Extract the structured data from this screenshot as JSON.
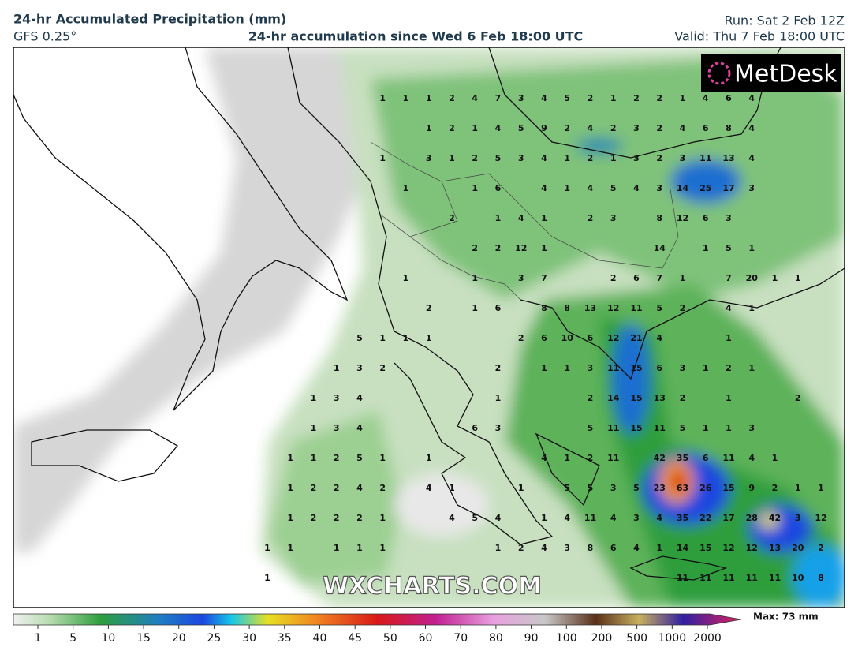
{
  "header": {
    "title": "24-hr Accumulated Precipitation (mm)",
    "model": "GFS 0.25°",
    "subtitle": "24-hr accumulation since Wed 6 Feb 18:00 UTC",
    "run": "Run: Sat 2 Feb 12Z",
    "valid": "Valid: Thu 7 Feb 18:00 UTC"
  },
  "logo": "MetDesk",
  "watermark": "WXCHARTS.COM",
  "grid": {
    "rows": [
      [
        null,
        null,
        null,
        null,
        null,
        1,
        1,
        1,
        2,
        4,
        7,
        3,
        4,
        5,
        2,
        1,
        2,
        2,
        1,
        4,
        6,
        4,
        null,
        null,
        null
      ],
      [
        null,
        null,
        null,
        null,
        null,
        null,
        null,
        1,
        2,
        1,
        4,
        5,
        9,
        2,
        4,
        2,
        3,
        2,
        4,
        6,
        8,
        4,
        null,
        null,
        null
      ],
      [
        null,
        null,
        null,
        null,
        null,
        1,
        null,
        3,
        1,
        2,
        5,
        3,
        4,
        1,
        2,
        1,
        3,
        2,
        3,
        11,
        13,
        4,
        null,
        null,
        null
      ],
      [
        null,
        null,
        null,
        null,
        null,
        null,
        1,
        null,
        null,
        1,
        6,
        null,
        4,
        1,
        4,
        5,
        4,
        3,
        14,
        25,
        17,
        3,
        null,
        null,
        null
      ],
      [
        null,
        null,
        null,
        null,
        null,
        null,
        null,
        null,
        2,
        null,
        1,
        4,
        1,
        null,
        2,
        3,
        null,
        8,
        12,
        6,
        3,
        null,
        null,
        null,
        null
      ],
      [
        null,
        null,
        null,
        null,
        null,
        null,
        null,
        null,
        null,
        2,
        2,
        12,
        1,
        null,
        null,
        null,
        null,
        14,
        null,
        1,
        5,
        1,
        null,
        null,
        null
      ],
      [
        null,
        null,
        null,
        null,
        null,
        null,
        1,
        null,
        null,
        1,
        null,
        3,
        7,
        null,
        null,
        2,
        6,
        7,
        1,
        null,
        7,
        20,
        1,
        1,
        null
      ],
      [
        null,
        null,
        null,
        null,
        null,
        null,
        null,
        2,
        null,
        1,
        6,
        null,
        8,
        8,
        13,
        12,
        11,
        5,
        2,
        null,
        4,
        1,
        null,
        null,
        null
      ],
      [
        null,
        null,
        null,
        null,
        5,
        1,
        1,
        1,
        null,
        null,
        null,
        2,
        6,
        10,
        6,
        12,
        21,
        4,
        null,
        null,
        1,
        null,
        null,
        null,
        null
      ],
      [
        null,
        null,
        null,
        1,
        3,
        2,
        null,
        null,
        null,
        null,
        2,
        null,
        1,
        1,
        3,
        11,
        15,
        6,
        3,
        1,
        2,
        1,
        null,
        null,
        null
      ],
      [
        null,
        null,
        1,
        3,
        4,
        null,
        null,
        null,
        null,
        null,
        1,
        null,
        null,
        null,
        2,
        14,
        15,
        13,
        2,
        null,
        1,
        null,
        null,
        2,
        null
      ],
      [
        null,
        null,
        1,
        3,
        4,
        null,
        null,
        null,
        null,
        6,
        3,
        null,
        null,
        null,
        5,
        11,
        15,
        11,
        5,
        1,
        1,
        3,
        null,
        null,
        null
      ],
      [
        null,
        1,
        1,
        2,
        5,
        1,
        null,
        1,
        null,
        null,
        null,
        null,
        4,
        1,
        2,
        11,
        null,
        42,
        35,
        6,
        11,
        4,
        1,
        null,
        null
      ],
      [
        null,
        1,
        2,
        2,
        4,
        2,
        null,
        4,
        1,
        null,
        null,
        1,
        null,
        5,
        5,
        3,
        5,
        23,
        63,
        26,
        15,
        9,
        2,
        1,
        1
      ],
      [
        null,
        1,
        2,
        2,
        2,
        1,
        null,
        null,
        4,
        5,
        4,
        null,
        1,
        4,
        11,
        4,
        3,
        4,
        35,
        22,
        17,
        28,
        42,
        3,
        12
      ],
      [
        1,
        1,
        null,
        1,
        1,
        1,
        null,
        null,
        null,
        null,
        1,
        2,
        4,
        3,
        8,
        6,
        4,
        1,
        14,
        15,
        12,
        12,
        13,
        20,
        2
      ],
      [
        1,
        null,
        null,
        null,
        null,
        null,
        null,
        null,
        null,
        null,
        null,
        null,
        null,
        null,
        null,
        null,
        null,
        null,
        11,
        11,
        11,
        11,
        11,
        10,
        8
      ]
    ]
  },
  "colorbar": {
    "ticks": [
      1,
      5,
      10,
      15,
      20,
      25,
      30,
      35,
      40,
      45,
      50,
      60,
      70,
      80,
      90,
      100,
      200,
      500,
      1000,
      2000
    ],
    "max_label": "Max: 73 mm"
  }
}
